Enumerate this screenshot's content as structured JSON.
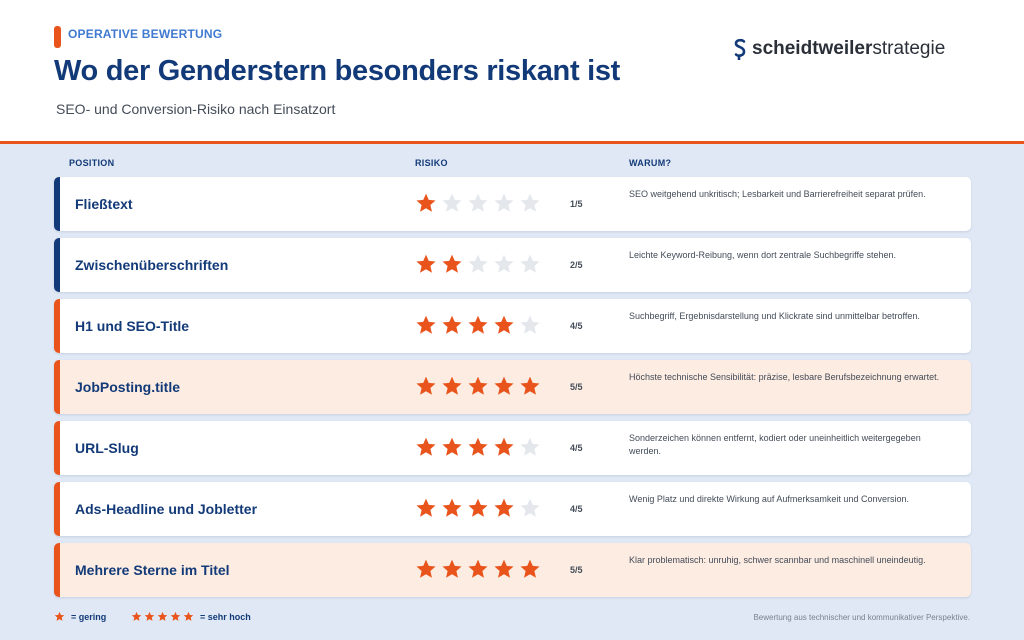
{
  "header": {
    "kicker": "OPERATIVE BEWERTUNG",
    "title": "Wo der Genderstern besonders riskant ist",
    "subtitle": "SEO- und Conversion-Risiko nach Einsatzort",
    "logo_bold": "scheidtweiler",
    "logo_light": "strategie"
  },
  "columns": {
    "position": "POSITION",
    "risk": "RISIKO",
    "why": "WARUM?"
  },
  "rows": [
    {
      "position": "Fließtext",
      "rating": 1,
      "score": "1/5",
      "why": "SEO weitgehend unkritisch; Lesbarkeit und Barrierefreiheit separat prüfen."
    },
    {
      "position": "Zwischenüberschriften",
      "rating": 2,
      "score": "2/5",
      "why": "Leichte Keyword-Reibung, wenn dort zentrale Suchbegriffe stehen."
    },
    {
      "position": "H1 und SEO-Title",
      "rating": 4,
      "score": "4/5",
      "why": "Suchbegriff, Ergebnisdarstellung und Klickrate sind unmittelbar betroffen."
    },
    {
      "position": "JobPosting.title",
      "rating": 5,
      "score": "5/5",
      "why": "Höchste technische Sensibilität: präzise, lesbare Berufsbezeichnung erwartet."
    },
    {
      "position": "URL-Slug",
      "rating": 4,
      "score": "4/5",
      "why": "Sonderzeichen können entfernt, kodiert oder uneinheitlich weitergegeben werden."
    },
    {
      "position": "Ads-Headline und Jobletter",
      "rating": 4,
      "score": "4/5",
      "why": "Wenig Platz und direkte Wirkung auf Aufmerksamkeit und Conversion."
    },
    {
      "position": "Mehrere Sterne im Titel",
      "rating": 5,
      "score": "5/5",
      "why": "Klar problematisch: unruhig, schwer scannbar und maschinell uneindeutig."
    }
  ],
  "legend": {
    "low_label": "= gering",
    "high_label": "= sehr hoch"
  },
  "footer_note": "Bewertung aus technischer und kommunikativer Perspektive.",
  "colors": {
    "accent_orange": "#e8541c",
    "navy": "#133a78",
    "star_empty": "#e4e7ec",
    "highlight_row": "#fcece2",
    "background": "#dfe8f4"
  }
}
